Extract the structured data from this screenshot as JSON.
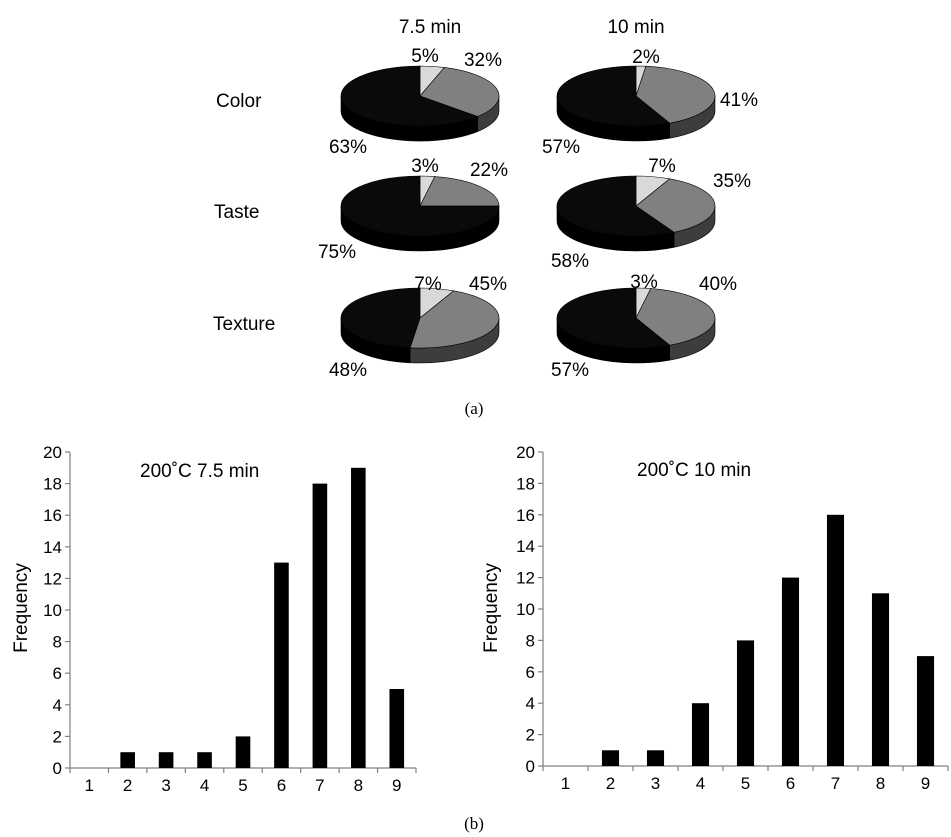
{
  "colors": {
    "dislike": "#d9d9d9",
    "neutral": "#808080",
    "like": "#0a0a0a",
    "neutral_side": "#3d3d3d",
    "dislike_side": "#b0b0b0",
    "like_side": "#000000",
    "bar": "#000000",
    "axis": "#808080"
  },
  "chart_data": [
    {
      "type": "pie",
      "panel": "(a)",
      "columns": [
        "7.5 min",
        "10 min"
      ],
      "rows": [
        "Color",
        "Taste",
        "Texture"
      ],
      "pies": [
        {
          "row": "Color",
          "column": "7.5 min",
          "values": [
            5,
            32,
            63
          ],
          "labels": [
            "5%",
            "32%",
            "63%"
          ]
        },
        {
          "row": "Color",
          "column": "10 min",
          "values": [
            2,
            41,
            57
          ],
          "labels": [
            "2%",
            "41%",
            "57%"
          ]
        },
        {
          "row": "Taste",
          "column": "7.5 min",
          "values": [
            3,
            22,
            75
          ],
          "labels": [
            "3%",
            "22%",
            "75%"
          ]
        },
        {
          "row": "Taste",
          "column": "10 min",
          "values": [
            7,
            35,
            58
          ],
          "labels": [
            "7%",
            "35%",
            "58%"
          ]
        },
        {
          "row": "Texture",
          "column": "7.5 min",
          "values": [
            7,
            45,
            48
          ],
          "labels": [
            "7%",
            "45%",
            "48%"
          ]
        },
        {
          "row": "Texture",
          "column": "10 min",
          "values": [
            3,
            40,
            57
          ],
          "labels": [
            "3%",
            "40%",
            "57%"
          ]
        }
      ]
    },
    {
      "type": "bar",
      "panel": "(b)",
      "annotation": "200˚C 7.5 min",
      "ylabel": "Frequency",
      "xlabel": "",
      "categories": [
        "1",
        "2",
        "3",
        "4",
        "5",
        "6",
        "7",
        "8",
        "9"
      ],
      "values": [
        0,
        1,
        1,
        1,
        2,
        13,
        18,
        19,
        5
      ],
      "ylim": [
        0,
        20
      ],
      "yticks": [
        0,
        2,
        4,
        6,
        8,
        10,
        12,
        14,
        16,
        18,
        20
      ]
    },
    {
      "type": "bar",
      "panel": "(b)",
      "annotation": "200˚C 10 min",
      "ylabel": "Frequency",
      "xlabel": "",
      "categories": [
        "1",
        "2",
        "3",
        "4",
        "5",
        "6",
        "7",
        "8",
        "9"
      ],
      "values": [
        0,
        1,
        1,
        4,
        8,
        12,
        16,
        11,
        7
      ],
      "ylim": [
        0,
        20
      ],
      "yticks": [
        0,
        2,
        4,
        6,
        8,
        10,
        12,
        14,
        16,
        18,
        20
      ]
    }
  ]
}
